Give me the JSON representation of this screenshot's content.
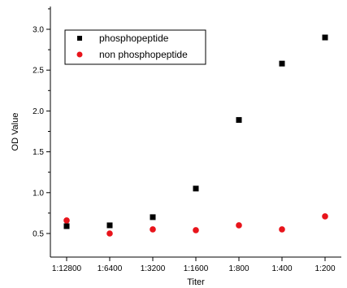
{
  "chart_data": {
    "type": "scatter",
    "xlabel": "Titer",
    "ylabel": "OD Value",
    "categories": [
      "1:12800",
      "1:6400",
      "1:3200",
      "1:1600",
      "1:800",
      "1:400",
      "1:200"
    ],
    "ylim": [
      0.3,
      3.3
    ],
    "yticks": [
      0.5,
      1.0,
      1.5,
      2.0,
      2.5,
      3.0
    ],
    "ytick_labels": [
      "0.5",
      "1.0",
      "1.5",
      "2.0",
      "2.5",
      "3.0"
    ],
    "grid": false,
    "legend_position": "top-left",
    "series": [
      {
        "name": "phosphopeptide",
        "marker": "square",
        "color": "#000000",
        "values": [
          0.59,
          0.6,
          0.7,
          1.05,
          1.89,
          2.58,
          2.9
        ]
      },
      {
        "name": "non phosphopeptide",
        "marker": "circle",
        "color": "#e8141b",
        "values": [
          0.66,
          0.5,
          0.55,
          0.54,
          0.6,
          0.55,
          0.71
        ]
      }
    ]
  }
}
